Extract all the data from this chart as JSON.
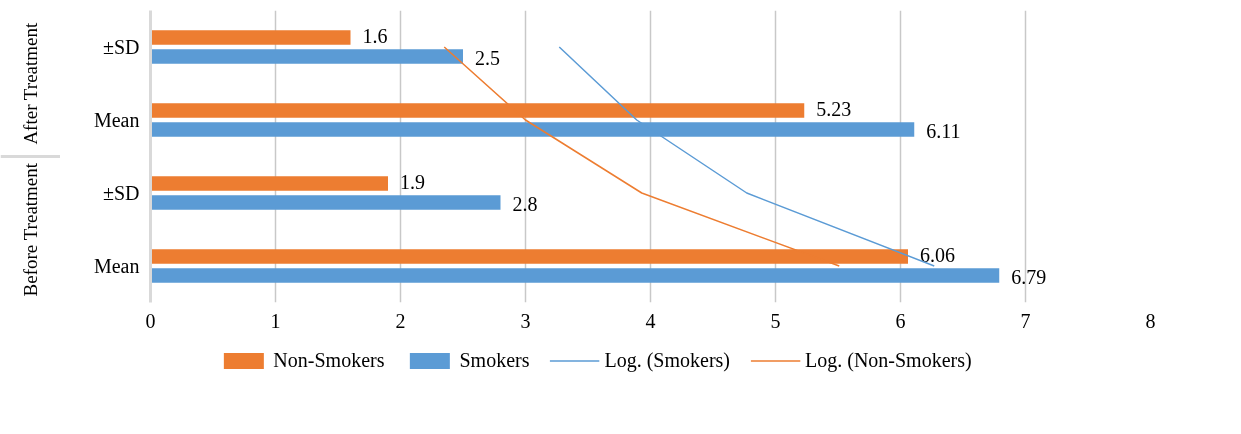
{
  "chart_data": {
    "type": "bar",
    "orientation": "horizontal",
    "categories": [
      "±SD",
      "Mean",
      "±SD",
      "Mean"
    ],
    "annotations": [
      "After Treatment",
      "Before Treatment"
    ],
    "series": [
      {
        "name": "Non-Smokers",
        "color": "#ed7d31",
        "values": [
          1.6,
          5.23,
          1.9,
          6.06
        ],
        "value_labels": [
          "1.6",
          "5.23",
          "1.9",
          "6.06"
        ]
      },
      {
        "name": "Smokers",
        "color": "#5b9bd5",
        "values": [
          2.5,
          6.11,
          2.8,
          6.79
        ],
        "value_labels": [
          "2.5",
          "6.11",
          "2.8",
          "6.79"
        ]
      },
      {
        "name": "Log. (Smokers)",
        "type": "line",
        "color": "#5b9bd5",
        "values": [
          3.27,
          3.89,
          4.77,
          6.27
        ]
      },
      {
        "name": "Log. (Non-Smokers)",
        "type": "line",
        "color": "#ed7d31",
        "values": [
          2.35,
          3.0,
          3.93,
          5.51
        ]
      }
    ],
    "xlim": [
      0,
      8
    ],
    "xticks": [
      0,
      1,
      2,
      3,
      4,
      5,
      6,
      7,
      8
    ],
    "grid": "x",
    "legend": "bottom"
  }
}
